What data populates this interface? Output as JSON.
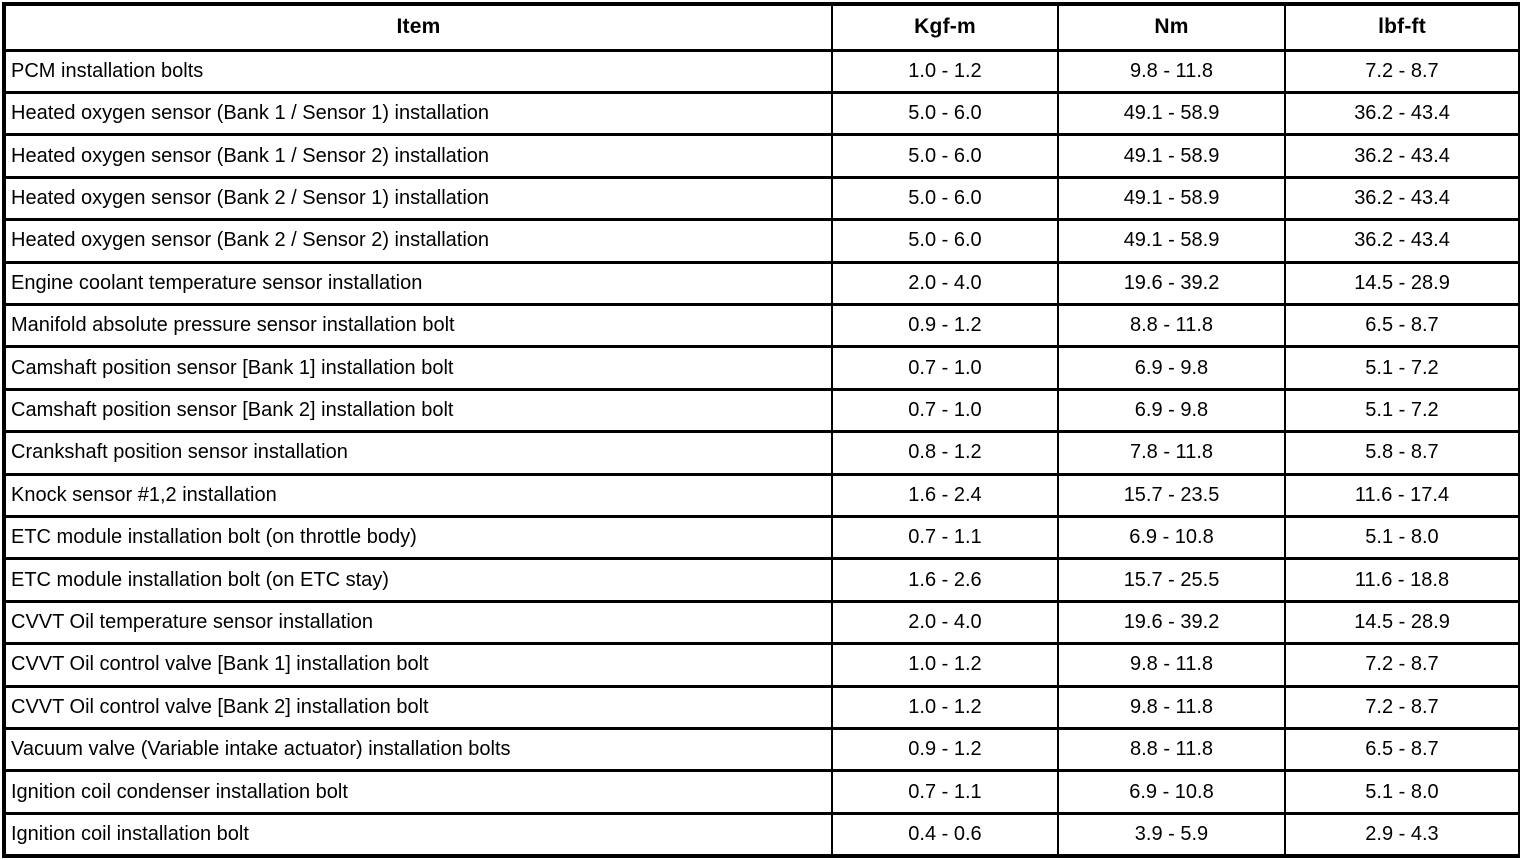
{
  "table": {
    "headers": [
      "Item",
      "Kgf-m",
      "Nm",
      "lbf-ft"
    ],
    "border_color": "#000000",
    "background_color": "#ffffff",
    "rows": [
      [
        "PCM installation bolts",
        "1.0 - 1.2",
        "9.8 - 11.8",
        "7.2 - 8.7"
      ],
      [
        "Heated oxygen sensor (Bank 1 / Sensor 1) installation",
        "5.0 - 6.0",
        "49.1 - 58.9",
        "36.2 - 43.4"
      ],
      [
        "Heated oxygen sensor (Bank 1 / Sensor 2) installation",
        "5.0 - 6.0",
        "49.1 - 58.9",
        "36.2 - 43.4"
      ],
      [
        "Heated oxygen sensor (Bank 2 / Sensor 1) installation",
        "5.0 - 6.0",
        "49.1 - 58.9",
        "36.2 - 43.4"
      ],
      [
        "Heated oxygen sensor (Bank 2 / Sensor 2) installation",
        "5.0 - 6.0",
        "49.1 - 58.9",
        "36.2 - 43.4"
      ],
      [
        "Engine coolant temperature sensor installation",
        "2.0 - 4.0",
        "19.6 - 39.2",
        "14.5 - 28.9"
      ],
      [
        "Manifold absolute pressure sensor installation bolt",
        "0.9 - 1.2",
        "8.8 - 11.8",
        "6.5 - 8.7"
      ],
      [
        "Camshaft position sensor [Bank 1] installation bolt",
        "0.7 - 1.0",
        "6.9 - 9.8",
        "5.1 - 7.2"
      ],
      [
        "Camshaft position sensor [Bank 2] installation bolt",
        "0.7 - 1.0",
        "6.9 - 9.8",
        "5.1 - 7.2"
      ],
      [
        "Crankshaft position sensor installation",
        "0.8 - 1.2",
        "7.8 - 11.8",
        "5.8 - 8.7"
      ],
      [
        "Knock sensor #1,2 installation",
        "1.6 - 2.4",
        "15.7 - 23.5",
        "11.6 - 17.4"
      ],
      [
        "ETC module installation bolt (on throttle body)",
        "0.7 - 1.1",
        "6.9 - 10.8",
        "5.1 - 8.0"
      ],
      [
        "ETC module installation bolt (on ETC stay)",
        "1.6 - 2.6",
        "15.7 - 25.5",
        "11.6 - 18.8"
      ],
      [
        "CVVT Oil temperature sensor installation",
        "2.0 - 4.0",
        "19.6 - 39.2",
        "14.5 - 28.9"
      ],
      [
        "CVVT Oil control valve [Bank 1] installation bolt",
        "1.0 - 1.2",
        "9.8 - 11.8",
        "7.2 - 8.7"
      ],
      [
        "CVVT Oil control valve [Bank 2] installation bolt",
        "1.0 - 1.2",
        "9.8 - 11.8",
        "7.2 - 8.7"
      ],
      [
        "Vacuum valve (Variable intake actuator) installation bolts",
        "0.9 - 1.2",
        "8.8 - 11.8",
        "6.5 - 8.7"
      ],
      [
        "Ignition coil condenser installation bolt",
        "0.7 - 1.1",
        "6.9 - 10.8",
        "5.1 - 8.0"
      ],
      [
        "Ignition coil installation bolt",
        "0.4 - 0.6",
        "3.9 - 5.9",
        "2.9 - 4.3"
      ]
    ]
  }
}
